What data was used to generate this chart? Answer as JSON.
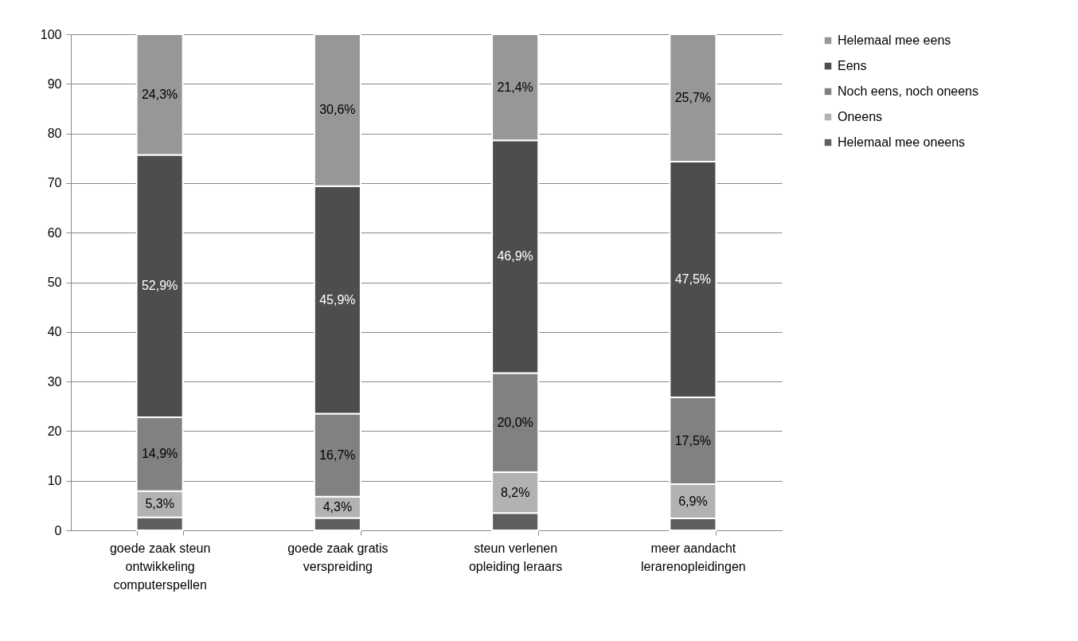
{
  "chart_data": {
    "type": "bar",
    "stacked": true,
    "categories": [
      "goede zaak steun ontwikkeling computerspellen",
      "goede zaak gratis verspreiding",
      "steun verlenen opleiding leraars",
      "meer aandacht lerarenopleidingen"
    ],
    "series": [
      {
        "name": "Helemaal mee oneens",
        "color": "#5f5f5f",
        "values": [
          2.6,
          2.5,
          3.5,
          2.4
        ],
        "value_labels": [
          null,
          null,
          null,
          null
        ]
      },
      {
        "name": "Oneens",
        "color": "#b2b2b2",
        "values": [
          5.3,
          4.3,
          8.2,
          6.9
        ],
        "value_labels": [
          "5,3%",
          "4,3%",
          "8,2%",
          "6,9%"
        ]
      },
      {
        "name": "Noch eens, noch oneens",
        "color": "#818181",
        "values": [
          14.9,
          16.7,
          20.0,
          17.5
        ],
        "value_labels": [
          "14,9%",
          "16,7%",
          "20,0%",
          "17,5%"
        ]
      },
      {
        "name": "Eens",
        "color": "#4d4d4d",
        "values": [
          52.9,
          45.9,
          46.9,
          47.5
        ],
        "value_labels": [
          "52,9%",
          "45,9%",
          "46,9%",
          "47,5%"
        ]
      },
      {
        "name": "Helemaal mee eens",
        "color": "#979797",
        "values": [
          24.3,
          30.6,
          21.4,
          25.7
        ],
        "value_labels": [
          "24,3%",
          "30,6%",
          "21,4%",
          "25,7%"
        ]
      }
    ],
    "ylim": [
      0,
      100
    ],
    "yticks": [
      0,
      10,
      20,
      30,
      40,
      50,
      60,
      70,
      80,
      90,
      100
    ],
    "grid": "y",
    "legend": "right"
  }
}
